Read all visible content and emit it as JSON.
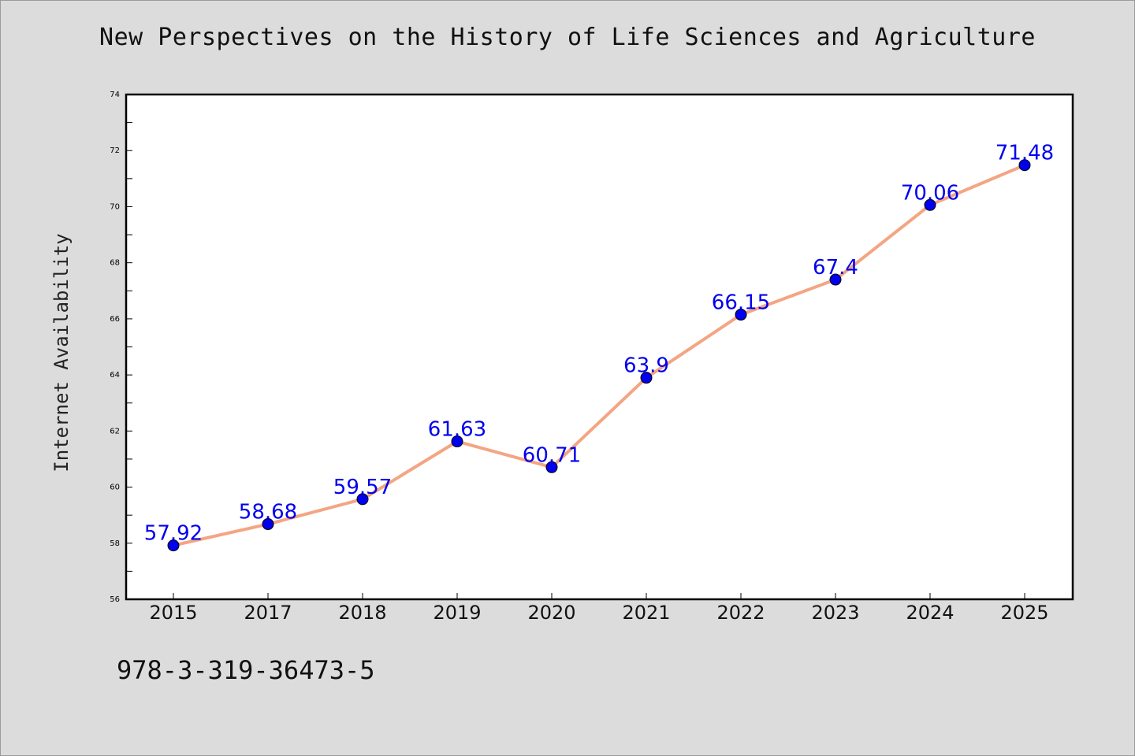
{
  "header": {
    "title": "New Perspectives on the History of Life Sciences and Agriculture"
  },
  "footer": {
    "isbn": "978-3-319-36473-5"
  },
  "colors": {
    "background": "#dcdcdc",
    "plot_background": "#ffffff",
    "line": "#f4a582",
    "marker": "#0000ee",
    "label": "#0000ee"
  },
  "chart_data": {
    "type": "line",
    "title": "New Perspectives on the History of Life Sciences and Agriculture",
    "xlabel": "",
    "ylabel": "Internet Availability",
    "categories": [
      "2015",
      "2017",
      "2018",
      "2019",
      "2020",
      "2021",
      "2022",
      "2023",
      "2024",
      "2025"
    ],
    "series": [
      {
        "values": [
          57.92,
          58.68,
          59.57,
          61.63,
          60.71,
          63.9,
          66.15,
          67.4,
          70.06,
          71.48
        ],
        "data_labels": [
          "57.92",
          "58.68",
          "59.57",
          "61.63",
          "60.71",
          "63.9",
          "66.15",
          "67.4",
          "70.06",
          "71.48"
        ]
      }
    ],
    "ylim": [
      56,
      74
    ],
    "y_ticks": [
      "56",
      "58",
      "60",
      "62",
      "64",
      "66",
      "68",
      "70",
      "72",
      "74"
    ],
    "grid": false,
    "legend": "none"
  }
}
